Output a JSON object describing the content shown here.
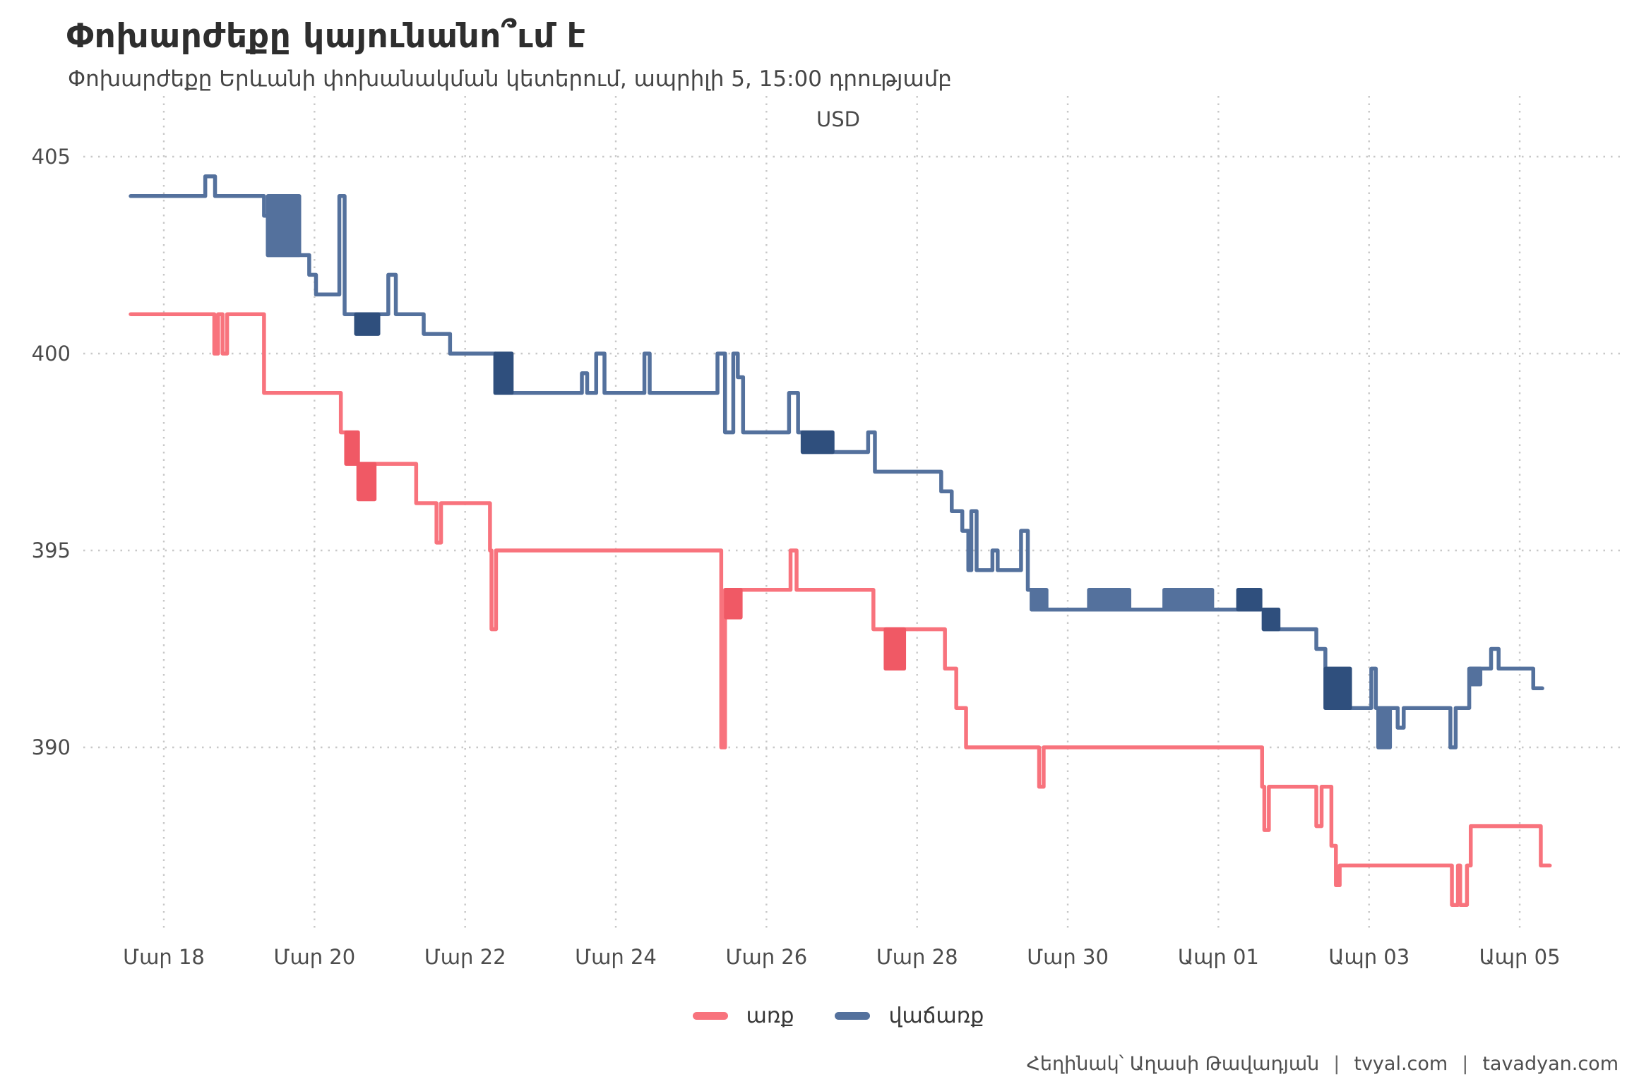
{
  "header": {
    "title": "Փոխարժեքը կայունանո՞ւմ է",
    "subtitle": "Փոխարժեքը Երևանի փոխանակման կետերում, ապրիլի 5, 15:00 դրությամբ"
  },
  "axis_top_label": "USD",
  "legend": {
    "items": [
      {
        "label": "առք",
        "color": "#f8737d"
      },
      {
        "label": "վաճառք",
        "color": "#54719d"
      }
    ]
  },
  "footer": {
    "author": "Հեղինակ՝ Աղասի Թավադյան",
    "separator": "|",
    "site1": "tvyal.com",
    "site2": "tavadyan.com"
  },
  "chart_data": {
    "type": "line",
    "subtype": "step",
    "title": "Փոխարժեքը կայունանո՞ւմ է",
    "top_label": "USD",
    "grid": true,
    "legend_position": "bottom-center",
    "x_axis": {
      "note": "day units: March day number, April continues 32=Apr01 ... 36=Apr05",
      "range": [
        17.3,
        36.6
      ],
      "ticks": [
        {
          "day": 18,
          "label": "Մար 18"
        },
        {
          "day": 20,
          "label": "Մար 20"
        },
        {
          "day": 22,
          "label": "Մար 22"
        },
        {
          "day": 24,
          "label": "Մար 24"
        },
        {
          "day": 26,
          "label": "Մար 26"
        },
        {
          "day": 28,
          "label": "Մար 28"
        },
        {
          "day": 30,
          "label": "Մար 30"
        },
        {
          "day": 32,
          "label": "Ապր 01"
        },
        {
          "day": 34,
          "label": "Ապր 03"
        },
        {
          "day": 36,
          "label": "Ապր 05"
        }
      ]
    },
    "y_axis": {
      "ticks": [
        405,
        400,
        395,
        390
      ],
      "range": [
        385.5,
        405.5
      ]
    },
    "segment_format": "L=[\"L\",x,value] step level from x; O=[\"O\",x0,x1,hi,lo,exit,dense] rapid oscillation band",
    "series": [
      {
        "name": "առք",
        "color": "#f8737d",
        "dense_color": "#f05965",
        "end": 36.4,
        "segments": [
          [
            "L",
            17.56,
            401
          ],
          [
            "L",
            18.67,
            400
          ],
          [
            "L",
            18.72,
            401
          ],
          [
            "L",
            18.78,
            400
          ],
          [
            "L",
            18.84,
            401
          ],
          [
            "L",
            19.33,
            399
          ],
          [
            "L",
            20.35,
            398
          ],
          [
            "O",
            20.42,
            20.58,
            398,
            397.2,
            397.2,
            true
          ],
          [
            "O",
            20.58,
            20.8,
            397.2,
            396.3,
            397.2,
            true
          ],
          [
            "L",
            21.35,
            396.2
          ],
          [
            "L",
            21.62,
            395.2
          ],
          [
            "L",
            21.68,
            396.2
          ],
          [
            "L",
            22.33,
            395
          ],
          [
            "L",
            22.35,
            393
          ],
          [
            "L",
            22.41,
            395
          ],
          [
            "L",
            25.4,
            390
          ],
          [
            "L",
            25.45,
            394
          ],
          [
            "O",
            25.46,
            25.66,
            394,
            393.3,
            394,
            true
          ],
          [
            "L",
            26.32,
            395
          ],
          [
            "L",
            26.4,
            394
          ],
          [
            "L",
            27.42,
            393
          ],
          [
            "O",
            27.58,
            27.83,
            393,
            392,
            393,
            true
          ],
          [
            "L",
            28.37,
            392
          ],
          [
            "L",
            28.52,
            391
          ],
          [
            "L",
            28.65,
            390
          ],
          [
            "L",
            29.62,
            389
          ],
          [
            "L",
            29.68,
            390
          ],
          [
            "L",
            32.58,
            389
          ],
          [
            "L",
            32.61,
            387.9
          ],
          [
            "L",
            32.67,
            389
          ],
          [
            "L",
            33.3,
            388
          ],
          [
            "L",
            33.37,
            389
          ],
          [
            "L",
            33.5,
            387.5
          ],
          [
            "L",
            33.56,
            386.5
          ],
          [
            "L",
            33.61,
            387
          ],
          [
            "L",
            35.1,
            386
          ],
          [
            "L",
            35.18,
            387
          ],
          [
            "L",
            35.21,
            386
          ],
          [
            "L",
            35.3,
            387
          ],
          [
            "L",
            35.35,
            388
          ],
          [
            "L",
            36.28,
            387
          ]
        ]
      },
      {
        "name": "վաճառք",
        "color": "#54719d",
        "dense_color": "#2f4f7d",
        "end": 36.3,
        "segments": [
          [
            "L",
            17.56,
            404
          ],
          [
            "L",
            18.55,
            404.5
          ],
          [
            "L",
            18.68,
            404
          ],
          [
            "L",
            19.33,
            403.5
          ],
          [
            "O",
            19.38,
            19.8,
            404,
            402.5,
            402.5,
            false
          ],
          [
            "L",
            19.93,
            402
          ],
          [
            "L",
            20.02,
            401.5
          ],
          [
            "L",
            20.33,
            404
          ],
          [
            "L",
            20.4,
            401
          ],
          [
            "O",
            20.55,
            20.85,
            401,
            400.5,
            401,
            true
          ],
          [
            "L",
            20.98,
            402
          ],
          [
            "L",
            21.08,
            401
          ],
          [
            "L",
            21.45,
            400.5
          ],
          [
            "L",
            21.8,
            400
          ],
          [
            "O",
            22.4,
            22.62,
            400,
            399,
            399,
            true
          ],
          [
            "L",
            23.55,
            399.5
          ],
          [
            "L",
            23.62,
            399
          ],
          [
            "L",
            23.74,
            400
          ],
          [
            "L",
            23.85,
            399
          ],
          [
            "L",
            24.38,
            400
          ],
          [
            "L",
            24.45,
            399
          ],
          [
            "L",
            25.35,
            400
          ],
          [
            "L",
            25.45,
            398
          ],
          [
            "L",
            25.56,
            400
          ],
          [
            "L",
            25.62,
            399.4
          ],
          [
            "L",
            25.69,
            398
          ],
          [
            "L",
            26.3,
            399
          ],
          [
            "L",
            26.42,
            398
          ],
          [
            "O",
            26.48,
            26.88,
            398,
            397.5,
            397.5,
            true
          ],
          [
            "L",
            27.35,
            398
          ],
          [
            "L",
            27.44,
            397
          ],
          [
            "L",
            28.32,
            396.5
          ],
          [
            "L",
            28.46,
            396
          ],
          [
            "L",
            28.6,
            395.5
          ],
          [
            "L",
            28.68,
            394.5
          ],
          [
            "L",
            28.72,
            396
          ],
          [
            "L",
            28.79,
            394.5
          ],
          [
            "L",
            29.0,
            395
          ],
          [
            "L",
            29.07,
            394.5
          ],
          [
            "L",
            29.38,
            395.5
          ],
          [
            "L",
            29.47,
            394
          ],
          [
            "O",
            29.52,
            29.72,
            394,
            393.5,
            393.5,
            false
          ],
          [
            "O",
            30.28,
            30.82,
            394,
            393.5,
            393.5,
            false
          ],
          [
            "O",
            31.28,
            31.92,
            394,
            393.5,
            393.5,
            false
          ],
          [
            "O",
            32.26,
            32.56,
            394,
            393.5,
            393.5,
            true
          ],
          [
            "O",
            32.6,
            32.8,
            393.5,
            393,
            393,
            true
          ],
          [
            "L",
            33.3,
            392.5
          ],
          [
            "O",
            33.42,
            33.75,
            392,
            391,
            391,
            true
          ],
          [
            "L",
            34.03,
            392
          ],
          [
            "L",
            34.09,
            391
          ],
          [
            "O",
            34.12,
            34.28,
            391,
            390,
            391,
            false
          ],
          [
            "L",
            34.38,
            390.5
          ],
          [
            "L",
            34.46,
            391
          ],
          [
            "L",
            35.08,
            390
          ],
          [
            "L",
            35.15,
            391
          ],
          [
            "L",
            35.33,
            392
          ],
          [
            "O",
            35.34,
            35.48,
            392,
            391.6,
            392,
            false
          ],
          [
            "L",
            35.62,
            392.5
          ],
          [
            "L",
            35.72,
            392
          ],
          [
            "L",
            36.18,
            391.5
          ]
        ]
      }
    ]
  }
}
